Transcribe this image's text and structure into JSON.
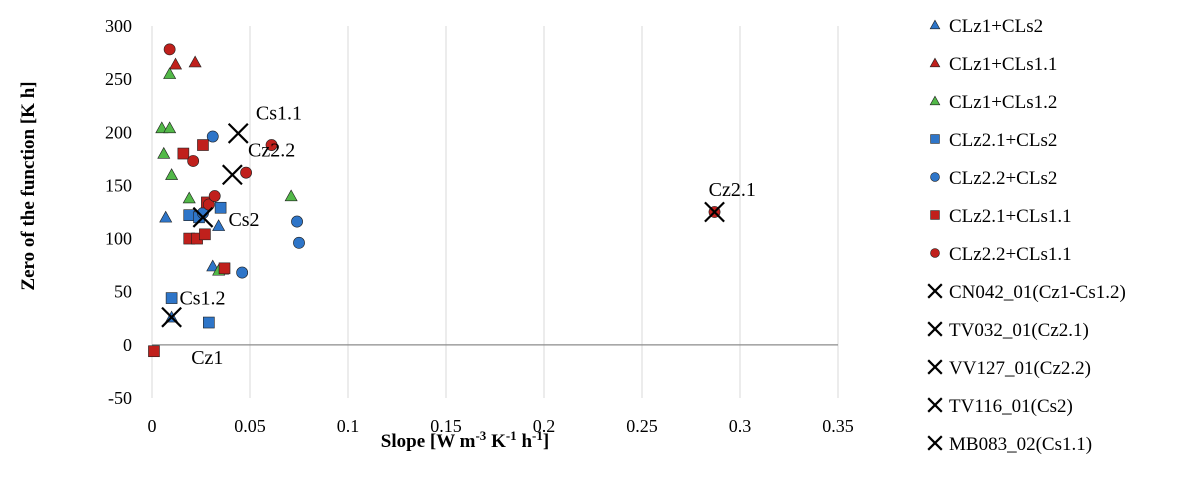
{
  "chart_data": {
    "type": "scatter",
    "title": "",
    "xlabel": {
      "base": "Slope [W m",
      "sup1": "-3",
      "mid1": " K",
      "sup2": "-1",
      "mid2": " h",
      "sup3": "-1",
      "end": "]"
    },
    "ylabel": "Zero of the function [K h]",
    "xlim": [
      0,
      0.35
    ],
    "ylim": [
      -50,
      300
    ],
    "x_ticks": [
      0,
      0.05,
      0.1,
      0.15,
      0.2,
      0.25,
      0.3,
      0.35
    ],
    "x_tick_labels": [
      "0",
      "0.05",
      "0.1",
      "0.15",
      "0.2",
      "0.25",
      "0.3",
      "0.35"
    ],
    "y_ticks": [
      -50,
      0,
      50,
      100,
      150,
      200,
      250,
      300
    ],
    "y_tick_labels": [
      "-50",
      "0",
      "50",
      "100",
      "150",
      "200",
      "250",
      "300"
    ],
    "grid": "vertical",
    "legend_position": "right",
    "series": [
      {
        "name": "CLz1+CLs2",
        "marker": "triangle",
        "color": "#2e75c8",
        "points": [
          [
            0.007,
            120
          ],
          [
            0.031,
            74
          ],
          [
            0.034,
            112
          ],
          [
            0.01,
            26
          ]
        ]
      },
      {
        "name": "CLz1+CLs1.1",
        "marker": "triangle",
        "color": "#c0201c",
        "points": [
          [
            0.012,
            264
          ],
          [
            0.022,
            266
          ],
          [
            0.036,
            71
          ]
        ]
      },
      {
        "name": "CLz1+CLs1.2",
        "marker": "triangle",
        "color": "#52b848",
        "points": [
          [
            0.005,
            204
          ],
          [
            0.009,
            204
          ],
          [
            0.006,
            180
          ],
          [
            0.01,
            160
          ],
          [
            0.009,
            255
          ],
          [
            0.019,
            138
          ],
          [
            0.071,
            140
          ],
          [
            0.034,
            70
          ]
        ]
      },
      {
        "name": "CLz2.1+CLs2",
        "marker": "square",
        "color": "#2e75c8",
        "points": [
          [
            0.019,
            122
          ],
          [
            0.01,
            44
          ],
          [
            0.029,
            21
          ],
          [
            0.035,
            129
          ],
          [
            0.024,
            120
          ]
        ]
      },
      {
        "name": "CLz2.2+CLs2",
        "marker": "circle",
        "color": "#2e75c8",
        "points": [
          [
            0.031,
            196
          ],
          [
            0.074,
            116
          ],
          [
            0.075,
            96
          ],
          [
            0.046,
            68
          ],
          [
            0.026,
            124
          ]
        ]
      },
      {
        "name": "CLz2.1+CLs1.1",
        "marker": "square",
        "color": "#c0201c",
        "points": [
          [
            0.001,
            -6
          ],
          [
            0.016,
            180
          ],
          [
            0.026,
            188
          ],
          [
            0.019,
            100
          ],
          [
            0.023,
            100
          ],
          [
            0.027,
            104
          ],
          [
            0.028,
            134
          ],
          [
            0.037,
            72
          ]
        ]
      },
      {
        "name": "CLz2.2+CLs1.1",
        "marker": "circle",
        "color": "#c0201c",
        "points": [
          [
            0.009,
            278
          ],
          [
            0.021,
            173
          ],
          [
            0.029,
            132
          ],
          [
            0.032,
            140
          ],
          [
            0.048,
            162
          ],
          [
            0.061,
            188
          ],
          [
            0.287,
            125
          ]
        ]
      },
      {
        "name": "CN042_01(Cz1-Cs1.2)",
        "marker": "x",
        "color": "#000000",
        "points": [
          [
            0.01,
            26
          ]
        ]
      },
      {
        "name": "TV032_01(Cz2.1)",
        "marker": "x",
        "color": "#000000",
        "points": [
          [
            0.287,
            125
          ]
        ]
      },
      {
        "name": "VV127_01(Cz2.2)",
        "marker": "x",
        "color": "#000000",
        "points": [
          [
            0.041,
            160
          ]
        ]
      },
      {
        "name": "TV116_01(Cs2)",
        "marker": "x",
        "color": "#000000",
        "points": [
          [
            0.026,
            120
          ]
        ]
      },
      {
        "name": "MB083_02(Cs1.1)",
        "marker": "x",
        "color": "#000000",
        "points": [
          [
            0.044,
            199
          ]
        ]
      }
    ],
    "annotations": [
      {
        "text": "Cs1.1",
        "x": 0.053,
        "y": 212,
        "anchor": "start"
      },
      {
        "text": "Cz2.2",
        "x": 0.049,
        "y": 177,
        "anchor": "start"
      },
      {
        "text": "Cz2.1",
        "x": 0.284,
        "y": 140,
        "anchor": "start"
      },
      {
        "text": "Cs2",
        "x": 0.039,
        "y": 112,
        "anchor": "start"
      },
      {
        "text": "Cs1.2",
        "x": 0.014,
        "y": 38,
        "anchor": "start"
      },
      {
        "text": "Cz1",
        "x": 0.02,
        "y": -18,
        "anchor": "start"
      }
    ]
  }
}
